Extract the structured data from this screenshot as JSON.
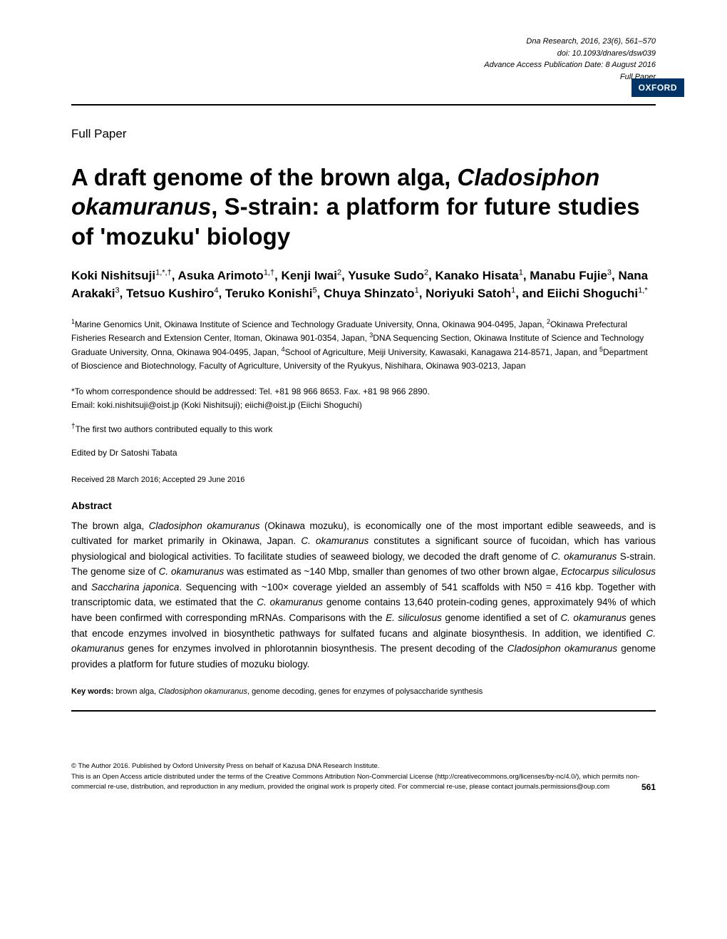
{
  "meta": {
    "journal_line": "Dna Research, 2016, 23(6), 561–570",
    "doi_line": "doi: 10.1093/dnares/dsw039",
    "access_line": "Advance Access Publication Date: 8 August 2016",
    "type_line": "Full Paper",
    "publisher_badge": "OXFORD"
  },
  "section_label": "Full Paper",
  "title_part1": "A draft genome of the brown alga, ",
  "title_italic": "Cladosiphon okamuranus",
  "title_part2": ", S-strain: a platform for future studies of 'mozuku' biology",
  "authors_html": "Koki Nishitsuji<sup>1,*,†</sup>, Asuka Arimoto<sup>1,†</sup>, Kenji Iwai<sup>2</sup>, Yusuke Sudo<sup>2</sup>, Kanako Hisata<sup>1</sup>, Manabu Fujie<sup>3</sup>, Nana Arakaki<sup>3</sup>, Tetsuo Kushiro<sup>4</sup>, Teruko Konishi<sup>5</sup>, Chuya Shinzato<sup>1</sup>, Noriyuki Satoh<sup>1</sup>, and Eiichi Shoguchi<sup>1,*</sup>",
  "affiliations_html": "<sup>1</sup>Marine Genomics Unit, Okinawa Institute of Science and Technology Graduate University, Onna, Okinawa 904-0495, Japan, <sup>2</sup>Okinawa Prefectural Fisheries Research and Extension Center, Itoman, Okinawa 901-0354, Japan, <sup>3</sup>DNA Sequencing Section, Okinawa Institute of Science and Technology Graduate University, Onna, Okinawa 904-0495, Japan, <sup>4</sup>School of Agriculture, Meiji University, Kawasaki, Kanagawa 214-8571, Japan, and <sup>5</sup>Department of Bioscience and Biotechnology, Faculty of Agriculture, University of the Ryukyus, Nishihara, Okinawa 903-0213, Japan",
  "correspondence_line1": "*To whom correspondence should be addressed: Tel. +81 98 966 8653. Fax. +81 98 966 2890.",
  "correspondence_line2": "Email: koki.nishitsuji@oist.jp (Koki Nishitsuji); eiichi@oist.jp (Eiichi Shoguchi)",
  "contrib_note_html": "<sup>†</sup>The first two authors contributed equally to this work",
  "editor": "Edited by Dr Satoshi Tabata",
  "dates": "Received 28 March 2016; Accepted 29 June 2016",
  "abstract_heading": "Abstract",
  "abstract_html": "The brown alga, <span class=\"italic\">Cladosiphon okamuranus</span> (Okinawa mozuku), is economically one of the most important edible seaweeds, and is cultivated for market primarily in Okinawa, Japan. <span class=\"italic\">C. okamuranus</span> constitutes a significant source of fucoidan, which has various physiological and biological activities. To facilitate studies of seaweed biology, we decoded the draft genome of <span class=\"italic\">C. okamuranus</span> S-strain. The genome size of <span class=\"italic\">C. okamuranus</span> was estimated as ~140 Mbp, smaller than genomes of two other brown algae, <span class=\"italic\">Ectocarpus siliculosus</span> and <span class=\"italic\">Saccharina japonica</span>. Sequencing with ~100× coverage yielded an assembly of 541 scaffolds with N50 = 416 kbp. Together with transcriptomic data, we estimated that the <span class=\"italic\">C. okamuranus</span> genome contains 13,640 protein-coding genes, approximately 94% of which have been confirmed with corresponding mRNAs. Comparisons with the <span class=\"italic\">E. siliculosus</span> genome identified a set of <span class=\"italic\">C. okamuranus</span> genes that encode enzymes involved in biosynthetic pathways for sulfated fucans and alginate biosynthesis. In addition, we identified <span class=\"italic\">C. okamuranus</span> genes for enzymes involved in phlorotannin biosynthesis. The present decoding of the <span class=\"italic\">Cladosiphon okamuranus</span> genome provides a platform for future studies of mozuku biology.",
  "keywords_label": "Key words:",
  "keywords_html": " brown alga, <span class=\"italic\">Cladosiphon okamuranus</span>, genome decoding, genes for enzymes of polysaccharide synthesis",
  "footer_line1": "© The Author 2016. Published by Oxford University Press on behalf of Kazusa DNA Research Institute.",
  "footer_line2": "This is an Open Access article distributed under the terms of the Creative Commons Attribution Non-Commercial License (http://creativecommons.org/licenses/by-nc/4.0/), which permits non-commercial re-use, distribution, and reproduction in any medium, provided the original work is properly cited. For commercial re-use, please contact journals.permissions@oup.com",
  "page_number": "561"
}
